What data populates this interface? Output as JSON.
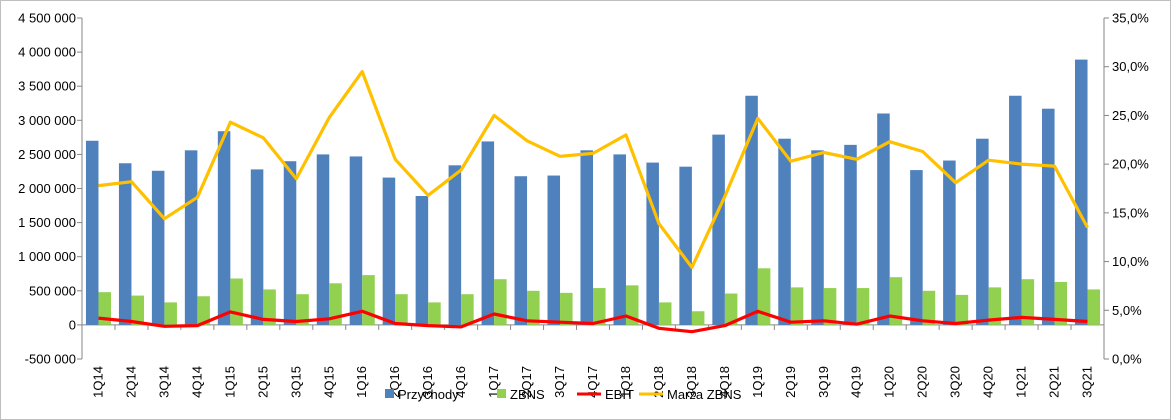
{
  "chart_data": {
    "type": "bar",
    "categories": [
      "1Q14",
      "2Q14",
      "3Q14",
      "4Q14",
      "1Q15",
      "2Q15",
      "3Q15",
      "4Q15",
      "1Q16",
      "2Q16",
      "3Q16",
      "4Q16",
      "1Q17",
      "2Q17",
      "3Q17",
      "4Q17",
      "1Q18",
      "2Q18",
      "3Q18",
      "4Q18",
      "1Q19",
      "2Q19",
      "3Q19",
      "4Q19",
      "1Q20",
      "2Q20",
      "3Q20",
      "4Q20",
      "1Q21",
      "2Q21",
      "3Q21"
    ],
    "series": [
      {
        "name": "Przychody",
        "type": "bar",
        "axis": "left",
        "color": "#4f81bd",
        "values": [
          2700000,
          2370000,
          2260000,
          2560000,
          2840000,
          2280000,
          2400000,
          2500000,
          2470000,
          2160000,
          1890000,
          2340000,
          2690000,
          2180000,
          2190000,
          2560000,
          2500000,
          2380000,
          2320000,
          2790000,
          3360000,
          2730000,
          2560000,
          2640000,
          3100000,
          2270000,
          2410000,
          2730000,
          3360000,
          3170000,
          3890000
        ]
      },
      {
        "name": "ZBNS",
        "type": "bar",
        "axis": "left",
        "color": "#92d050",
        "values": [
          480000,
          430000,
          330000,
          420000,
          680000,
          520000,
          450000,
          610000,
          730000,
          450000,
          330000,
          450000,
          670000,
          500000,
          470000,
          540000,
          580000,
          330000,
          200000,
          460000,
          830000,
          550000,
          540000,
          540000,
          700000,
          500000,
          440000,
          550000,
          670000,
          630000,
          520000
        ]
      },
      {
        "name": "EBIT",
        "type": "line",
        "axis": "left",
        "color": "#ff0000",
        "values": [
          100000,
          50000,
          -20000,
          -10000,
          190000,
          80000,
          50000,
          90000,
          200000,
          20000,
          -10000,
          -30000,
          160000,
          60000,
          40000,
          20000,
          130000,
          -50000,
          -100000,
          -10000,
          200000,
          40000,
          60000,
          10000,
          130000,
          60000,
          20000,
          70000,
          110000,
          80000,
          50000
        ]
      },
      {
        "name": "Marża ZBNS",
        "type": "line",
        "axis": "right",
        "color": "#ffc000",
        "values": [
          0.178,
          0.182,
          0.144,
          0.166,
          0.243,
          0.227,
          0.185,
          0.248,
          0.295,
          0.205,
          0.168,
          0.194,
          0.25,
          0.224,
          0.208,
          0.211,
          0.23,
          0.139,
          0.094,
          0.167,
          0.247,
          0.203,
          0.212,
          0.205,
          0.223,
          0.213,
          0.181,
          0.204,
          0.2,
          0.198,
          0.135
        ]
      }
    ],
    "y_left": {
      "lim": [
        -500000,
        4500000
      ],
      "ticks": [
        -500000,
        0,
        500000,
        1000000,
        1500000,
        2000000,
        2500000,
        3000000,
        3500000,
        4000000,
        4500000
      ],
      "tick_labels": [
        "-500 000",
        "0",
        "500 000",
        "1 000 000",
        "1 500 000",
        "2 000 000",
        "2 500 000",
        "3 000 000",
        "3 500 000",
        "4 000 000",
        "4 500 000"
      ]
    },
    "y_right": {
      "lim": [
        0,
        0.35
      ],
      "ticks": [
        0,
        0.05,
        0.1,
        0.15,
        0.2,
        0.25,
        0.3,
        0.35
      ],
      "tick_labels": [
        "0,0%",
        "5,0%",
        "10,0%",
        "15,0%",
        "20,0%",
        "25,0%",
        "30,0%",
        "35,0%"
      ]
    },
    "title": "",
    "xlabel": "",
    "ylabel": "",
    "grid": false,
    "legend_position": "bottom"
  }
}
